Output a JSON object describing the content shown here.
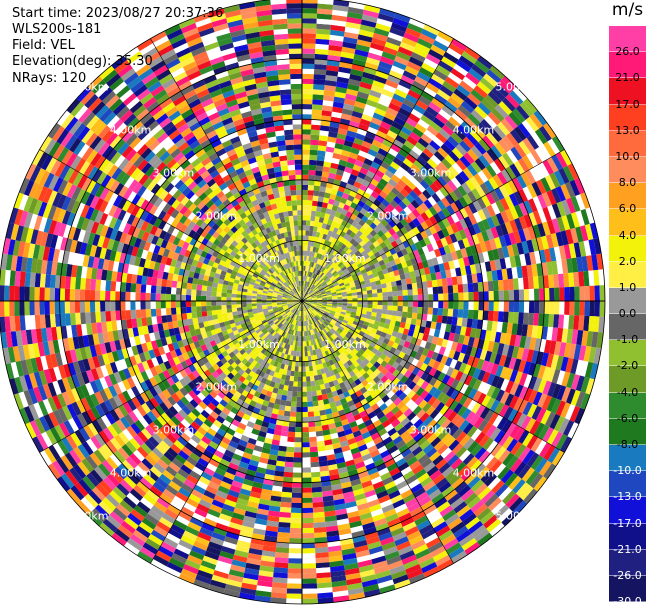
{
  "header": {
    "start_time": "Start time: 2023/08/27 20:37:36",
    "instrument": "WLS200s-181",
    "field": "Field: VEL",
    "elevation": "Elevation(deg): 35.30",
    "nrays": "NRays: 120"
  },
  "chart_data": {
    "type": "heatmap",
    "subtype": "polar-ppi",
    "field": "VEL",
    "unit": "m/s",
    "n_rays": 120,
    "max_range_km": 5.0,
    "range_rings_km": [
      1.0,
      2.0,
      3.0,
      4.0,
      5.0
    ],
    "ring_labels": [
      {
        "text": "1.00km",
        "ring_km": 1.0
      },
      {
        "text": "2.00km",
        "ring_km": 2.0
      },
      {
        "text": "3.00km",
        "ring_km": 3.0
      },
      {
        "text": "4.00km",
        "ring_km": 4.0
      },
      {
        "text": "5.00km",
        "ring_km": 5.0
      }
    ],
    "colorbar": {
      "unit": "m/s",
      "ticks_top_to_bottom": [
        "26.0",
        "21.0",
        "17.0",
        "13.0",
        "10.0",
        "8.0",
        "6.0",
        "4.0",
        "2.0",
        "1.0",
        "0.0",
        "-1.0",
        "-2.0",
        "-4.0",
        "-6.0",
        "-8.0",
        "-10.0",
        "-13.0",
        "-17.0",
        "-21.0",
        "-26.0",
        "-30.0"
      ],
      "colors_top_to_bottom": [
        "#ff3fa6",
        "#ff1a77",
        "#ee1122",
        "#ff4020",
        "#ff6b3c",
        "#ff8c5c",
        "#ffa020",
        "#ffbf1a",
        "#f2f20a",
        "#ffee44",
        "#999999",
        "#666666",
        "#90c030",
        "#6e9a28",
        "#2e8b2e",
        "#1f7a1f",
        "#1a7ac0",
        "#1f47c0",
        "#1010d8",
        "#10108a",
        "#202080",
        "#141460"
      ]
    },
    "notes": "Inner region (<2 km) shows low velocities (yellow/gray/olive); outer region is noise"
  }
}
